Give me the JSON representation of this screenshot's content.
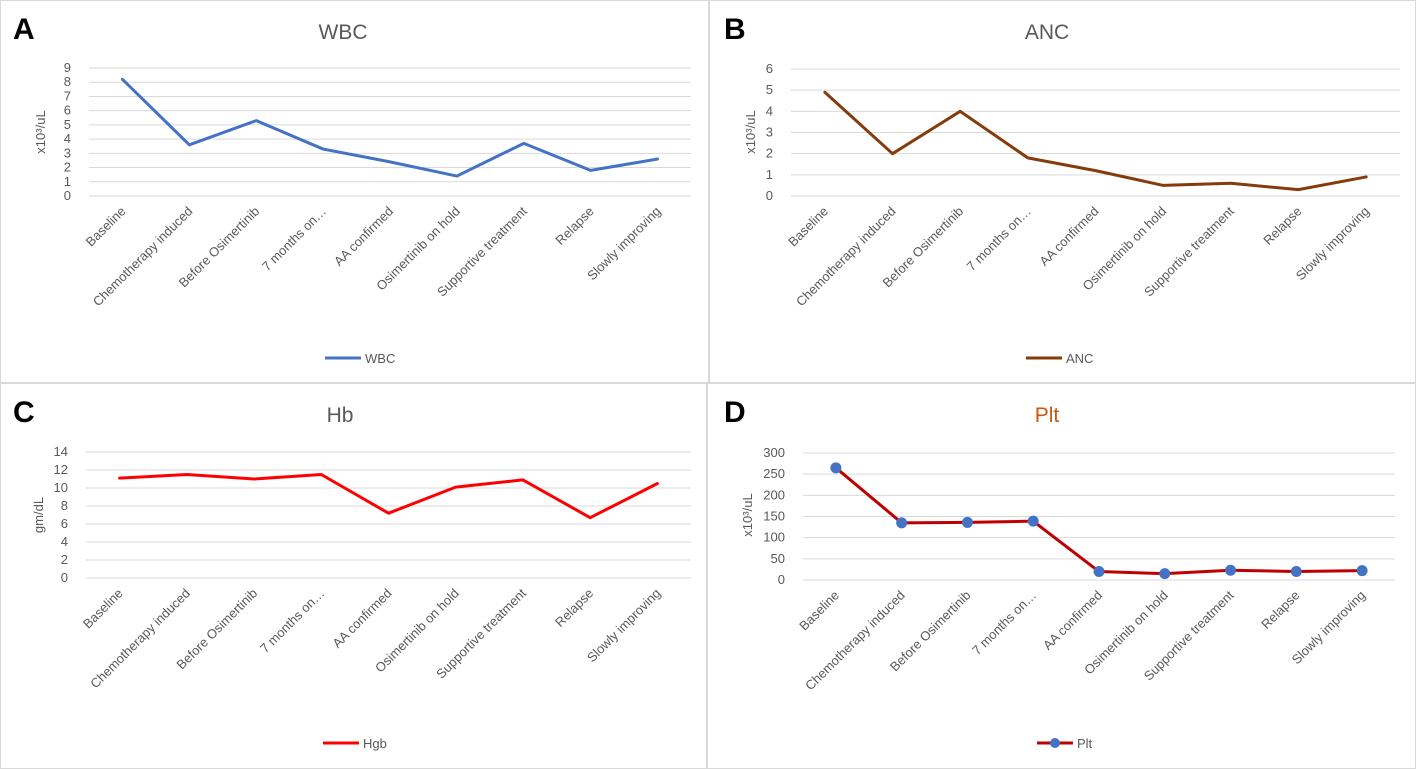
{
  "panels": [
    {
      "letter": "A"
    },
    {
      "letter": "B"
    },
    {
      "letter": "C"
    },
    {
      "letter": "D"
    }
  ],
  "chart_data": [
    {
      "type": "line",
      "title": "WBC",
      "title_color": "#595959",
      "ylabel": "x10³/uL",
      "ylim": [
        0,
        9
      ],
      "ytick_labels": [
        "0",
        "1",
        "2",
        "3",
        "4",
        "5",
        "6",
        "7",
        "8",
        "9"
      ],
      "categories": [
        "Baseline",
        "Chemotherapy induced",
        "Before Osimertinib",
        "7 months on…",
        "AA confirmed",
        "Osimertinib on hold",
        "Supportive treatment",
        "Relapse",
        "Slowly improving"
      ],
      "series": [
        {
          "name": "WBC",
          "color": "#4472c4",
          "markers": false,
          "values": [
            8.2,
            3.6,
            5.3,
            3.3,
            2.4,
            1.4,
            3.7,
            1.8,
            2.6
          ]
        }
      ],
      "legend": "bottom",
      "grid": true
    },
    {
      "type": "line",
      "title": "ANC",
      "title_color": "#595959",
      "ylabel": "x10³/uL",
      "ylim": [
        0,
        6
      ],
      "ytick_labels": [
        "0",
        "1",
        "2",
        "3",
        "4",
        "5",
        "6"
      ],
      "categories": [
        "Baseline",
        "Chemotherapy induced",
        "Before Osimertinib",
        "7 months on…",
        "AA confirmed",
        "Osimertinib on hold",
        "Supportive treatment",
        "Relapse",
        "Slowly improving"
      ],
      "series": [
        {
          "name": "ANC",
          "color": "#843c0c",
          "markers": false,
          "values": [
            4.9,
            2.0,
            4.0,
            1.8,
            1.2,
            0.5,
            0.6,
            0.3,
            0.9
          ]
        }
      ],
      "legend": "bottom",
      "grid": true
    },
    {
      "type": "line",
      "title": "Hb",
      "title_color": "#595959",
      "ylabel": "gm/dL",
      "ylim": [
        0,
        14
      ],
      "ytick_labels": [
        "0",
        "2",
        "4",
        "6",
        "8",
        "10",
        "12",
        "14"
      ],
      "categories": [
        "Baseline",
        "Chemotherapy induced",
        "Before Osimertinib",
        "7 months on…",
        "AA confirmed",
        "Osimertinib on hold",
        "Supportive treatment",
        "Relapse",
        "Slowly improving"
      ],
      "series": [
        {
          "name": "Hgb",
          "color": "#ff0000",
          "markers": false,
          "values": [
            11.1,
            11.5,
            11.0,
            11.5,
            7.2,
            10.1,
            10.9,
            6.7,
            10.5
          ]
        }
      ],
      "legend": "bottom",
      "grid": true
    },
    {
      "type": "line",
      "title": "Plt",
      "title_color": "#c55a11",
      "ylabel": "x10³/uL",
      "ylim": [
        0,
        300
      ],
      "ytick_labels": [
        "0",
        "50",
        "100",
        "150",
        "200",
        "250",
        "300"
      ],
      "categories": [
        "Baseline",
        "Chemotherapy induced",
        "Before Osimertinib",
        "7 months on…",
        "AA confirmed",
        "Osimertinib on hold",
        "Supportive treatment",
        "Relapse",
        "Slowly improving"
      ],
      "series": [
        {
          "name": "Plt",
          "color": "#c00000",
          "marker_color": "#4472c4",
          "markers": true,
          "values": [
            265,
            135,
            136,
            139,
            20,
            15,
            23,
            20,
            22
          ]
        }
      ],
      "legend": "bottom",
      "grid": true
    }
  ]
}
